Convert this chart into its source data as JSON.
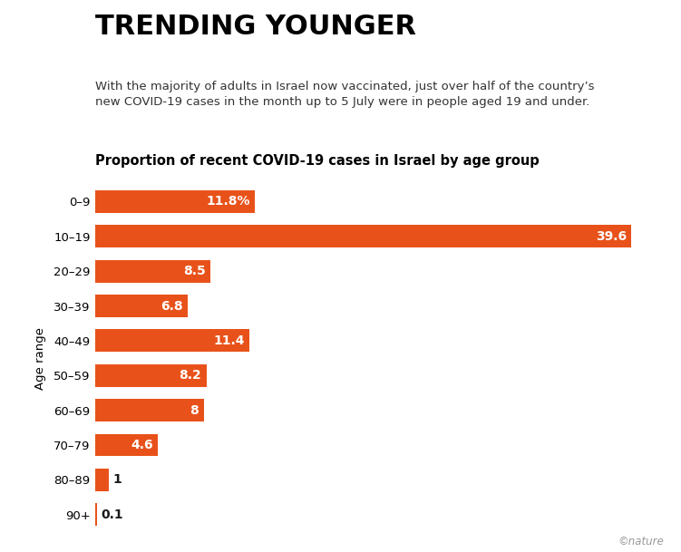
{
  "title": "TRENDING YOUNGER",
  "subtitle": "With the majority of adults in Israel now vaccinated, just over half of the country’s\nnew COVID-19 cases in the month up to 5 July were in people aged 19 and under.",
  "chart_label": "Proportion of recent COVID-19 cases in Israel by age group",
  "categories": [
    "0–9",
    "10–19",
    "20–29",
    "30–39",
    "40–49",
    "50–59",
    "60–69",
    "70–79",
    "80–89",
    "90+"
  ],
  "values": [
    11.8,
    39.6,
    8.5,
    6.8,
    11.4,
    8.2,
    8.0,
    4.6,
    1.0,
    0.1
  ],
  "labels": [
    "11.8%",
    "39.6",
    "8.5",
    "6.8",
    "11.4",
    "8.2",
    "8",
    "4.6",
    "1",
    "0.1"
  ],
  "bar_color": "#E8521A",
  "label_color_inside": "#FFFFFF",
  "label_color_outside": "#1A1A1A",
  "ylabel": "Age range",
  "background_color": "#FFFFFF",
  "nature_credit": "©nature",
  "title_fontsize": 22,
  "subtitle_fontsize": 9.5,
  "chart_label_fontsize": 10.5,
  "bar_label_fontsize": 10,
  "ytick_fontsize": 9.5,
  "ylabel_fontsize": 9.5,
  "xlim": [
    0,
    42
  ],
  "inside_threshold": 3.5
}
